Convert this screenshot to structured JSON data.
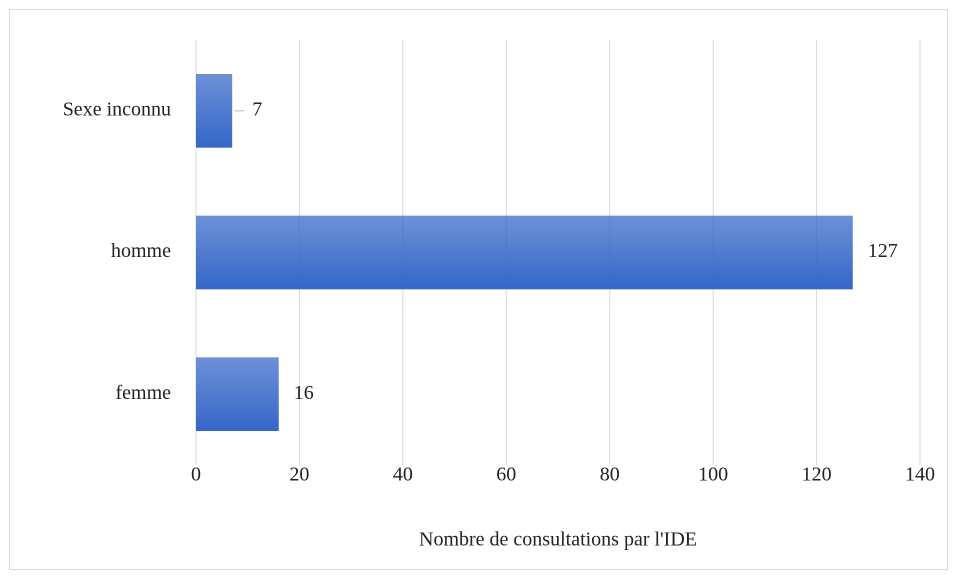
{
  "chart_data": {
    "type": "hbar",
    "categories": [
      "femme",
      "homme",
      "Sexe inconnu"
    ],
    "values": [
      16,
      127,
      7
    ],
    "color": "#3566c8",
    "xlabel": "Nombre de consultations par l'IDE",
    "xlim": [
      0,
      140
    ],
    "xticks": [
      0,
      20,
      40,
      60,
      80,
      100,
      120,
      140
    ],
    "grid": true
  }
}
